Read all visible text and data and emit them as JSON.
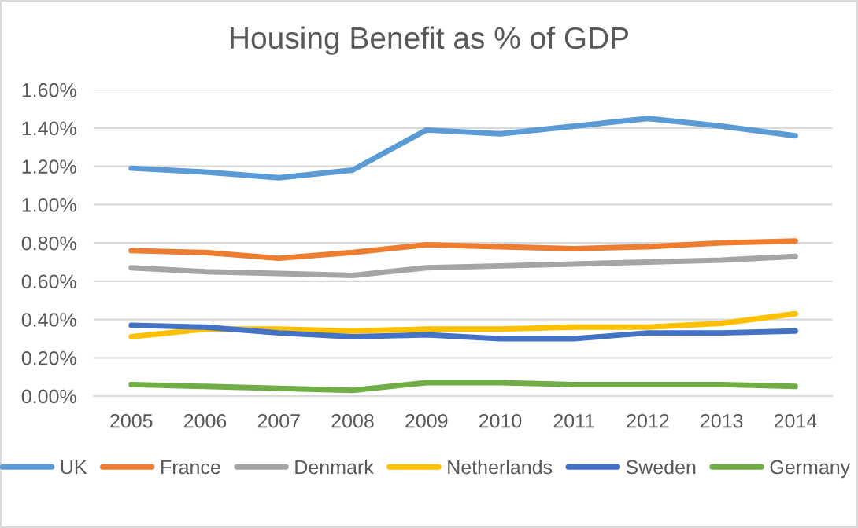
{
  "chart_data": {
    "type": "line",
    "title": "Housing Benefit as % of GDP",
    "categories": [
      "2005",
      "2006",
      "2007",
      "2008",
      "2009",
      "2010",
      "2011",
      "2012",
      "2013",
      "2014"
    ],
    "series": [
      {
        "name": "UK",
        "color": "#5b9bd5",
        "values": [
          1.19,
          1.17,
          1.14,
          1.18,
          1.39,
          1.37,
          1.41,
          1.45,
          1.41,
          1.36
        ]
      },
      {
        "name": "France",
        "color": "#ed7d31",
        "values": [
          0.76,
          0.75,
          0.72,
          0.75,
          0.79,
          0.78,
          0.77,
          0.78,
          0.8,
          0.81
        ]
      },
      {
        "name": "Denmark",
        "color": "#a5a5a5",
        "values": [
          0.67,
          0.65,
          0.64,
          0.63,
          0.67,
          0.68,
          0.69,
          0.7,
          0.71,
          0.73
        ]
      },
      {
        "name": "Netherlands",
        "color": "#ffc000",
        "values": [
          0.31,
          0.35,
          0.35,
          0.34,
          0.35,
          0.35,
          0.36,
          0.36,
          0.38,
          0.43
        ]
      },
      {
        "name": "Sweden",
        "color": "#4472c4",
        "values": [
          0.37,
          0.36,
          0.33,
          0.31,
          0.32,
          0.3,
          0.3,
          0.33,
          0.33,
          0.34
        ]
      },
      {
        "name": "Germany",
        "color": "#70ad47",
        "values": [
          0.06,
          0.05,
          0.04,
          0.03,
          0.07,
          0.07,
          0.06,
          0.06,
          0.06,
          0.05
        ]
      }
    ],
    "ylim": [
      0,
      1.6
    ],
    "yticks": [
      {
        "value": 0,
        "label": "0.00%"
      },
      {
        "value": 0.2,
        "label": "0.20%"
      },
      {
        "value": 0.4,
        "label": "0.40%"
      },
      {
        "value": 0.6,
        "label": "0.60%"
      },
      {
        "value": 0.8,
        "label": "0.80%"
      },
      {
        "value": 1.0,
        "label": "1.00%"
      },
      {
        "value": 1.2,
        "label": "1.20%"
      },
      {
        "value": 1.4,
        "label": "1.40%"
      },
      {
        "value": 1.6,
        "label": "1.60%"
      }
    ],
    "grid": "y",
    "legend": "bottom",
    "marker": "none",
    "line_style": "solid"
  }
}
